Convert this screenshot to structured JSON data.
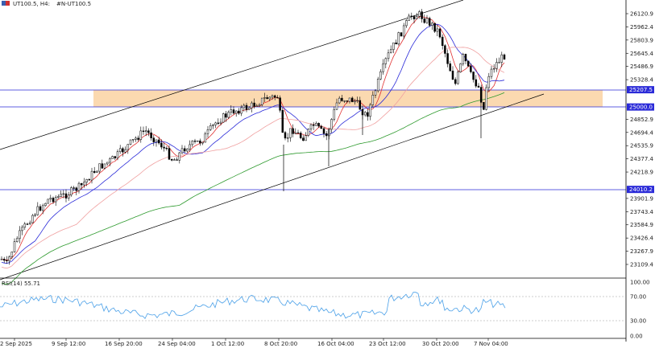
{
  "header": {
    "symbol_label": "UT100.5, H4:",
    "symbol_desc": "#N-UT100.5"
  },
  "price_axis": {
    "labels": [
      "26120.9",
      "25962.4",
      "25803.9",
      "25645.4",
      "25486.9",
      "25328.4",
      "24852.9",
      "24694.4",
      "24535.9",
      "24377.4",
      "24218.9",
      "23901.9",
      "23743.4",
      "23584.9",
      "23426.4",
      "23267.9",
      "23109.4"
    ],
    "tags": [
      {
        "text": "25207.5",
        "value": 25207.5,
        "fill": "#2a2ad8"
      },
      {
        "text": "25000.0",
        "value": 25000.0,
        "fill": "#2a2ad8"
      },
      {
        "text": "24010.2",
        "value": 24010.2,
        "fill": "#2a2ad8"
      }
    ]
  },
  "rsi": {
    "label": "RSI(14) 55.71",
    "levels": [
      "100.00",
      "70.00",
      "30.00",
      "0.00"
    ]
  },
  "time_axis": {
    "labels": [
      "2 Sep 2025",
      "9 Sep 12:00",
      "16 Sep 20:00",
      "24 Sep 04:00",
      "1 Oct 12:00",
      "8 Oct 20:00",
      "16 Oct 04:00",
      "23 Oct 12:00",
      "30 Oct 20:00",
      "7 Nov 04:00"
    ]
  },
  "chart_data": {
    "type": "candlestick",
    "symbol": "UT100.5",
    "timeframe": "H4",
    "horizontal_levels": [
      25207.5,
      25000.0,
      24010.2
    ],
    "zone": {
      "from": 25000.0,
      "to": 25207.5,
      "color": "#fbd9b0"
    },
    "moving_average_colors": [
      "#2a2ad8",
      "#e03030",
      "#f0a0a0",
      "#2e9a2e"
    ],
    "rsi_period": 14,
    "rsi_last": 55.71,
    "rsi_levels": [
      70,
      30
    ],
    "colors": {
      "candle": "#000000",
      "rsi_line": "#4aa0e8",
      "channel": "#000000"
    }
  }
}
